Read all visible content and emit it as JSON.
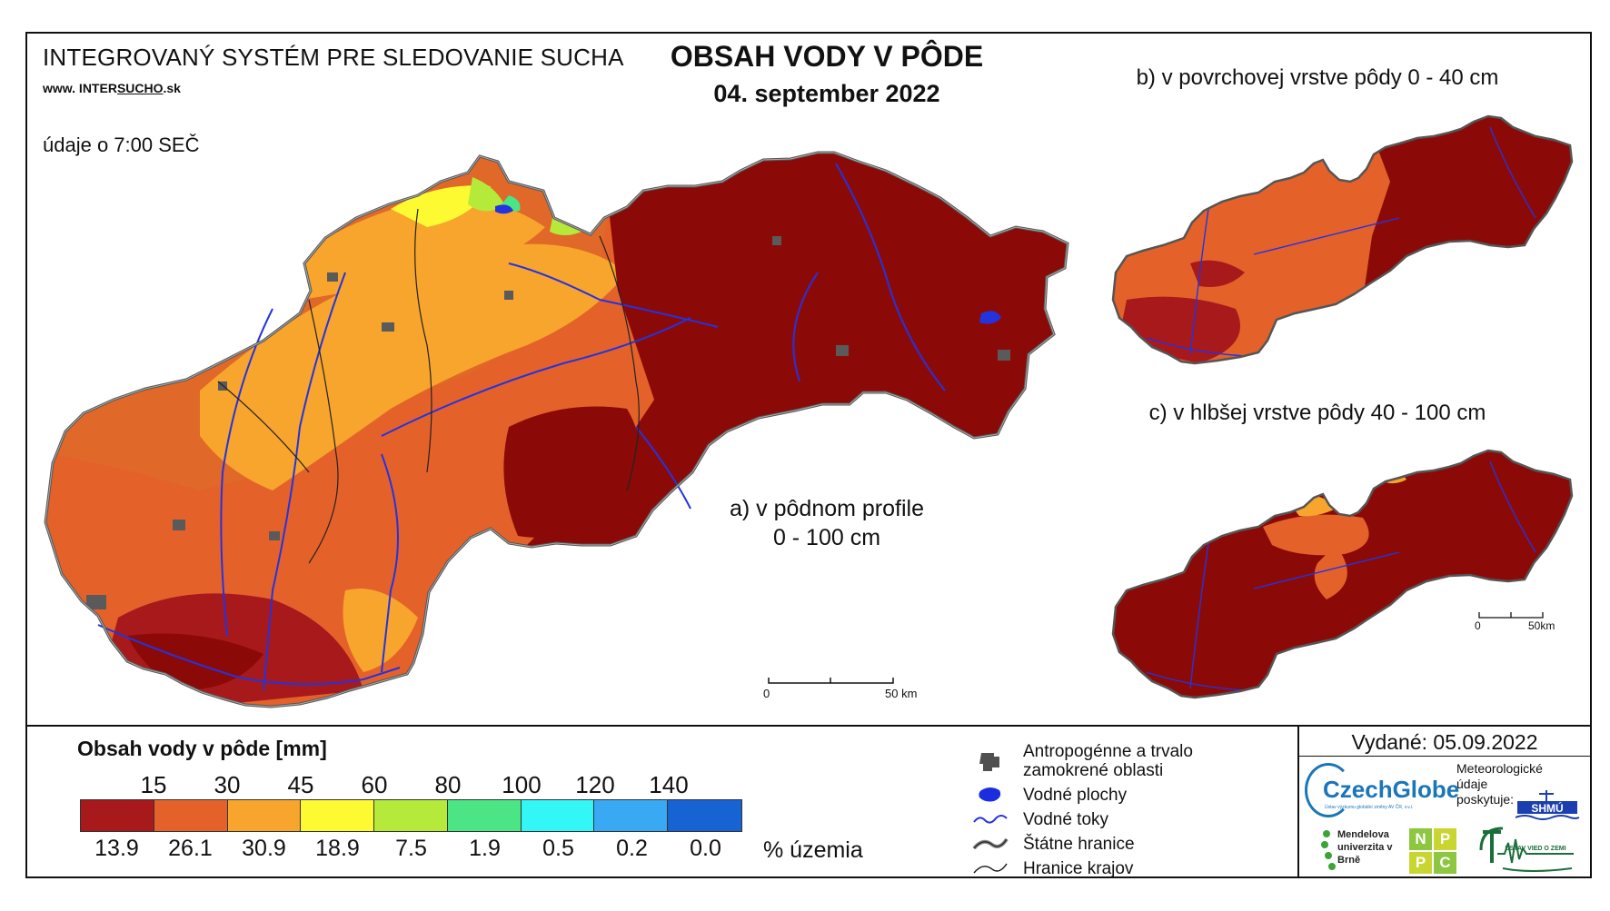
{
  "header": {
    "system_title": "INTEGROVANÝ SYSTÉM PRE SLEDOVANIE SUCHA",
    "website_prefix": "www. INTER",
    "website_highlight": "SUCHO",
    "website_suffix": ".sk",
    "data_time": "údaje o 7:00 SEČ",
    "main_title": "OBSAH VODY V PÔDE",
    "date": "04. september 2022"
  },
  "maps": {
    "a_label_line1": "a) v pôdnom profile",
    "a_label_line2": "0 - 100 cm",
    "b_label": "b) v povrchovej vrstve pôdy 0 - 40 cm",
    "c_label": "c) v hlbšej vrstve pôdy 40 - 100 cm",
    "scale_main": {
      "start": "0",
      "end": "50 km"
    },
    "scale_small": {
      "start": "0",
      "end": "50km"
    }
  },
  "legend": {
    "title": "Obsah vody v pôde  [mm]",
    "thresholds": [
      "15",
      "30",
      "45",
      "60",
      "80",
      "100",
      "120",
      "140"
    ],
    "classes": [
      {
        "color": "#a8191b",
        "percent": "13.9"
      },
      {
        "color": "#e4622a",
        "percent": "26.1"
      },
      {
        "color": "#f7a52c",
        "percent": "30.9"
      },
      {
        "color": "#fdfa32",
        "percent": "18.9"
      },
      {
        "color": "#b5ea3a",
        "percent": "7.5"
      },
      {
        "color": "#4be585",
        "percent": "1.9"
      },
      {
        "color": "#33f6f6",
        "percent": "0.5"
      },
      {
        "color": "#3aa9f4",
        "percent": "0.2"
      },
      {
        "color": "#1763d4",
        "percent": "0.0"
      }
    ],
    "percent_unit": "% územia"
  },
  "map_legend": {
    "anthropogenic_line1": "Antropogénne a trvalo",
    "anthropogenic_line2": "zamokrené oblasti",
    "water_bodies": "Vodné plochy",
    "water_streams": "Vodné toky",
    "state_borders": "Štátne hranice",
    "region_borders": "Hranice krajov"
  },
  "issued": "Vydané: 05.09.2022",
  "providers": {
    "czechglobe": "CzechGlobe",
    "czechglobe_sub": "Ústav výzkumu globální změny AV ČR, v.v.i.",
    "meteo_text": "Meteorologické údaje poskytuje:",
    "shmu": "SHMÚ",
    "mendel": "Mendelova univerzita v Brně",
    "nppc": [
      "N",
      "P",
      "P",
      "C"
    ],
    "uvz": "ÚSTAV VIED O ZEMI"
  },
  "colors": {
    "dark_red": "#8b0a07",
    "red": "#a8191b",
    "orange": "#e4622a",
    "light_orange": "#f7a52c",
    "yellow": "#fdfa32",
    "river": "#2433e0",
    "anthropogenic": "#5a5a5a"
  }
}
